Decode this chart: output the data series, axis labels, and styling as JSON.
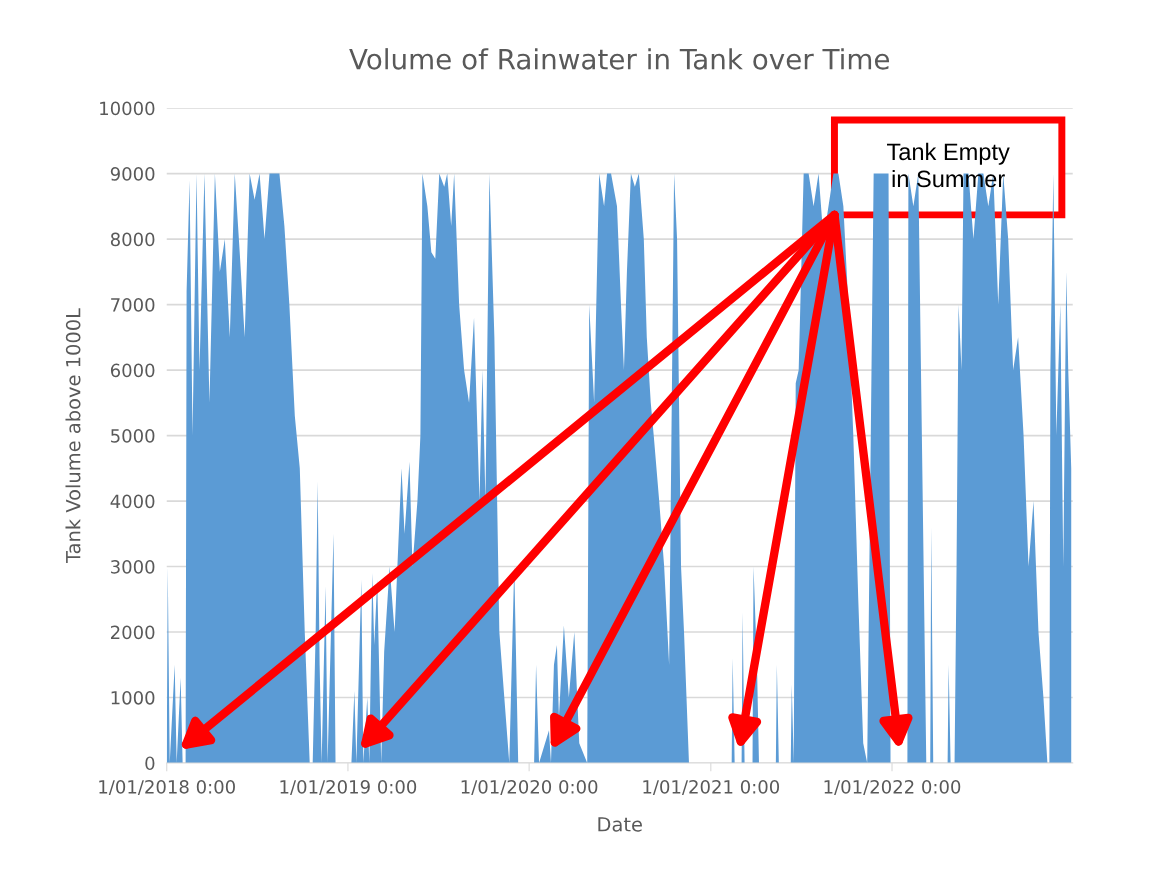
{
  "chart_data": {
    "type": "area",
    "title": "Volume of Rainwater in Tank over Time",
    "xlabel": "Date",
    "ylabel": "Tank Volume above 1000L",
    "grid": "y",
    "legend": false,
    "xlim": [
      "2018-01-01",
      "2022-12-31"
    ],
    "xticks": [
      {
        "value": "2018-01-01",
        "label": "1/01/2018 0:00"
      },
      {
        "value": "2019-01-01",
        "label": "1/01/2019 0:00"
      },
      {
        "value": "2020-01-01",
        "label": "1/01/2020 0:00"
      },
      {
        "value": "2021-01-01",
        "label": "1/01/2021 0:00"
      },
      {
        "value": "2022-01-01",
        "label": "1/01/2022 0:00"
      }
    ],
    "ylim": [
      0,
      10000
    ],
    "yticks": [
      0,
      1000,
      2000,
      3000,
      4000,
      5000,
      6000,
      7000,
      8000,
      9000,
      10000
    ],
    "series": [
      {
        "color": "#5b9bd5",
        "x": [
          "2018-01-01",
          "2018-01-03",
          "2018-01-07",
          "2018-01-17",
          "2018-01-21",
          "2018-01-29",
          "2018-02-02",
          "2018-02-08",
          "2018-02-10",
          "2018-02-16",
          "2018-02-22",
          "2018-03-02",
          "2018-03-08",
          "2018-03-18",
          "2018-03-28",
          "2018-04-08",
          "2018-04-18",
          "2018-04-28",
          "2018-05-08",
          "2018-05-18",
          "2018-05-28",
          "2018-06-07",
          "2018-06-17",
          "2018-06-27",
          "2018-07-07",
          "2018-07-17",
          "2018-07-27",
          "2018-08-16",
          "2018-08-26",
          "2018-09-05",
          "2018-09-16",
          "2018-09-26",
          "2018-10-06",
          "2018-10-16",
          "2018-10-22",
          "2018-10-28",
          "2018-11-01",
          "2018-11-05",
          "2018-11-09",
          "2018-11-17",
          "2018-11-21",
          "2018-12-03",
          "2018-12-07",
          "2019-01-08",
          "2019-01-14",
          "2019-01-18",
          "2019-01-28",
          "2019-02-01",
          "2019-02-09",
          "2019-02-13",
          "2019-02-19",
          "2019-02-23",
          "2019-03-01",
          "2019-03-09",
          "2019-03-15",
          "2019-03-26",
          "2019-04-05",
          "2019-04-19",
          "2019-04-25",
          "2019-05-05",
          "2019-05-11",
          "2019-05-21",
          "2019-05-27",
          "2019-05-31",
          "2019-06-10",
          "2019-06-18",
          "2019-06-26",
          "2019-07-04",
          "2019-07-14",
          "2019-07-20",
          "2019-07-28",
          "2019-08-03",
          "2019-08-13",
          "2019-08-23",
          "2019-09-02",
          "2019-09-12",
          "2019-09-23",
          "2019-09-29",
          "2019-10-05",
          "2019-10-13",
          "2019-10-23",
          "2019-11-02",
          "2019-11-12",
          "2019-11-22",
          "2019-12-02",
          "2019-12-10",
          "2020-01-11",
          "2020-01-15",
          "2020-01-21",
          "2020-02-10",
          "2020-02-14",
          "2020-02-20",
          "2020-02-26",
          "2020-03-01",
          "2020-03-11",
          "2020-03-21",
          "2020-04-01",
          "2020-04-11",
          "2020-04-27",
          "2020-05-01",
          "2020-05-11",
          "2020-05-21",
          "2020-05-31",
          "2020-06-06",
          "2020-06-14",
          "2020-06-26",
          "2020-07-04",
          "2020-07-10",
          "2020-07-16",
          "2020-07-24",
          "2020-08-01",
          "2020-08-09",
          "2020-08-19",
          "2020-08-25",
          "2020-09-02",
          "2020-09-08",
          "2020-09-19",
          "2020-09-29",
          "2020-10-09",
          "2020-10-19",
          "2020-10-25",
          "2020-11-02",
          "2020-11-08",
          "2020-11-18",
          "2021-02-12",
          "2021-02-14",
          "2021-02-18",
          "2021-03-04",
          "2021-03-06",
          "2021-03-10",
          "2021-03-26",
          "2021-03-28",
          "2021-04-04",
          "2021-04-08",
          "2021-05-12",
          "2021-05-14",
          "2021-05-18",
          "2021-06-11",
          "2021-06-13",
          "2021-06-17",
          "2021-06-21",
          "2021-06-27",
          "2021-07-07",
          "2021-07-17",
          "2021-07-27",
          "2021-08-06",
          "2021-08-16",
          "2021-08-26",
          "2021-09-05",
          "2021-09-15",
          "2021-09-25",
          "2021-10-05",
          "2021-10-15",
          "2021-10-25",
          "2021-11-04",
          "2021-11-12",
          "2021-11-25",
          "2021-12-09",
          "2021-12-25",
          "2021-12-29",
          "2022-02-01",
          "2022-02-03",
          "2022-02-13",
          "2022-02-23",
          "2022-03-11",
          "2022-03-19",
          "2022-03-21",
          "2022-03-25",
          "2022-04-23",
          "2022-04-25",
          "2022-04-29",
          "2022-05-07",
          "2022-05-11",
          "2022-05-15",
          "2022-05-21",
          "2022-05-25",
          "2022-06-04",
          "2022-06-14",
          "2022-06-24",
          "2022-07-04",
          "2022-07-14",
          "2022-07-24",
          "2022-08-03",
          "2022-08-13",
          "2022-08-23",
          "2022-09-02",
          "2022-09-12",
          "2022-09-23",
          "2022-10-03",
          "2022-10-13",
          "2022-10-23",
          "2022-11-02",
          "2022-11-10",
          "2022-11-14",
          "2022-11-16",
          "2022-11-22",
          "2022-11-28",
          "2022-12-06",
          "2022-12-12",
          "2022-12-18",
          "2022-12-22",
          "2022-12-28"
        ],
        "values": [
          0,
          3000,
          0,
          1500,
          0,
          1300,
          0,
          0,
          7200,
          8900,
          5000,
          9000,
          6000,
          9000,
          5500,
          9000,
          7500,
          8000,
          6500,
          9000,
          7800,
          6500,
          9000,
          8600,
          9000,
          8000,
          9000,
          9000,
          8200,
          7000,
          5300,
          4500,
          2000,
          0,
          0,
          2000,
          4300,
          1500,
          0,
          2700,
          0,
          3500,
          0,
          0,
          1100,
          0,
          2800,
          0,
          1000,
          0,
          2900,
          1800,
          2800,
          0,
          1700,
          3000,
          2000,
          4500,
          3500,
          4600,
          3000,
          4000,
          5000,
          9000,
          8500,
          7800,
          7700,
          9000,
          8800,
          9000,
          8200,
          9000,
          7000,
          6000,
          5500,
          6800,
          4000,
          6000,
          4000,
          9000,
          6500,
          2000,
          1000,
          0,
          3000,
          0,
          0,
          1500,
          0,
          500,
          0,
          1500,
          1800,
          700,
          2100,
          1000,
          2000,
          300,
          0,
          7000,
          5500,
          9000,
          8500,
          9000,
          9000,
          8500,
          7000,
          6000,
          7500,
          9000,
          8800,
          9000,
          8000,
          6500,
          5500,
          5000,
          4000,
          3000,
          1500,
          9000,
          8000,
          3000,
          2000,
          0,
          0,
          1600,
          0,
          0,
          2300,
          0,
          0,
          3000,
          1500,
          0,
          0,
          1500,
          0,
          0,
          1200,
          0,
          5800,
          6000,
          9000,
          9000,
          8500,
          9000,
          8000,
          8500,
          9000,
          9000,
          8500,
          7000,
          5000,
          2500,
          300,
          0,
          9000,
          9000,
          9000,
          0,
          0,
          9000,
          8500,
          9000,
          0,
          0,
          3600,
          0,
          0,
          1500,
          0,
          0,
          3000,
          7000,
          6000,
          9000,
          9000,
          8000,
          9000,
          9000,
          8500,
          9000,
          7000,
          9000,
          8000,
          6000,
          6500,
          5000,
          3000,
          4000,
          2000,
          1000,
          0,
          0,
          6000,
          9000,
          5000,
          7000,
          3000,
          7500,
          6000,
          4500
        ]
      }
    ],
    "annotations": [
      "Tank Empty\nin Summer"
    ]
  }
}
